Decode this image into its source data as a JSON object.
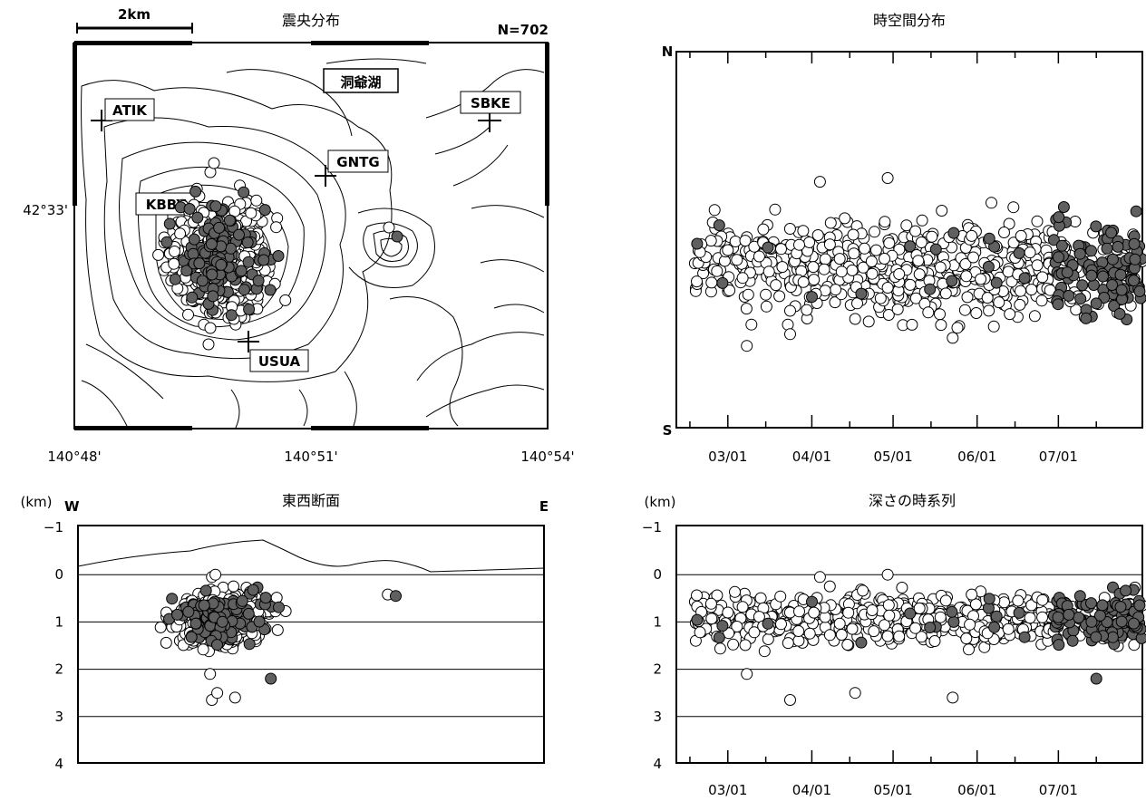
{
  "panels": {
    "map": {
      "title": "震央分布",
      "count_label": "N=702",
      "scale_label": "2km",
      "lake_label": "洞爺湖",
      "lat_label": "42°33'",
      "lon_labels": [
        "140°48'",
        "140°51'",
        "140°54'"
      ],
      "stations": [
        "ATIK",
        "SBKE",
        "GNTG",
        "KBBY",
        "USUA"
      ]
    },
    "spacetime": {
      "title": "時空間分布",
      "north_label": "N",
      "south_label": "S",
      "date_labels": [
        "03/01",
        "04/01",
        "05/01",
        "06/01",
        "07/01"
      ]
    },
    "ew_section": {
      "title": "東西断面",
      "unit_label": "(km)",
      "west_label": "W",
      "east_label": "E",
      "depth_ticks": [
        "−1",
        "0",
        "1",
        "2",
        "3",
        "4"
      ]
    },
    "depth_time": {
      "title": "深さの時系列",
      "unit_label": "(km)",
      "depth_ticks": [
        "−1",
        "0",
        "1",
        "2",
        "3",
        "4"
      ],
      "date_labels": [
        "03/01",
        "04/01",
        "05/01",
        "06/01",
        "07/01"
      ]
    }
  },
  "chart_data": [
    {
      "type": "scatter",
      "panel": "map",
      "title": "震央分布",
      "annotation": "N=702",
      "x_ticks": [
        "140°48'",
        "140°51'",
        "140°54'"
      ],
      "y_ticks": [
        "42°33'"
      ],
      "markers": {
        "earlier_events": "white",
        "recent_events": "gray"
      },
      "cluster_note": "epicenters concentrated near KBBY, west of lake Toya",
      "isolated_points": [
        {
          "lon_deg": 140.815,
          "lat_deg": 42.561
        },
        {
          "lon_deg": 140.879,
          "lat_deg": 42.546
        }
      ]
    },
    {
      "type": "scatter",
      "panel": "spacetime",
      "title": "時空間分布",
      "y_range": [
        "S",
        "N"
      ],
      "x_ticks": [
        "03/01",
        "04/01",
        "05/01",
        "06/01",
        "07/01"
      ],
      "x_range": [
        "02/10",
        "08/01"
      ],
      "markers": {
        "earlier_events": "white",
        "recent_events": "gray"
      }
    },
    {
      "type": "scatter",
      "panel": "ew_section",
      "title": "東西断面",
      "ylabel": "(km)",
      "ylim": [
        4,
        -1
      ],
      "y_ticks": [
        -1,
        0,
        1,
        2,
        3,
        4
      ],
      "x_ends": [
        "W",
        "E"
      ],
      "markers": {
        "earlier_events": "white",
        "recent_events": "gray"
      },
      "notable_points": [
        {
          "depth_km": 2.2,
          "marker": "gray"
        },
        {
          "depth_km": 0.45,
          "marker": "gray"
        },
        {
          "depth_km": 2.6,
          "marker": "white"
        }
      ]
    },
    {
      "type": "scatter",
      "panel": "depth_time",
      "title": "深さの時系列",
      "ylabel": "(km)",
      "ylim": [
        4,
        -1
      ],
      "y_ticks": [
        -1,
        0,
        1,
        2,
        3,
        4
      ],
      "x_ticks": [
        "03/01",
        "04/01",
        "05/01",
        "06/01",
        "07/01"
      ],
      "x_range": [
        "02/10",
        "08/01"
      ],
      "markers": {
        "earlier_events": "white",
        "recent_events": "gray"
      },
      "notable_points": [
        {
          "date": "03/09",
          "depth_km": 2.1
        },
        {
          "date": "03/25",
          "depth_km": 2.65
        },
        {
          "date": "04/17",
          "depth_km": 2.5
        },
        {
          "date": "05/23",
          "depth_km": 2.6
        },
        {
          "date": "04/04",
          "depth_km": 0.05
        },
        {
          "date": "04/29",
          "depth_km": 0.0
        },
        {
          "date": "07/15",
          "depth_km": 2.2
        }
      ]
    }
  ]
}
